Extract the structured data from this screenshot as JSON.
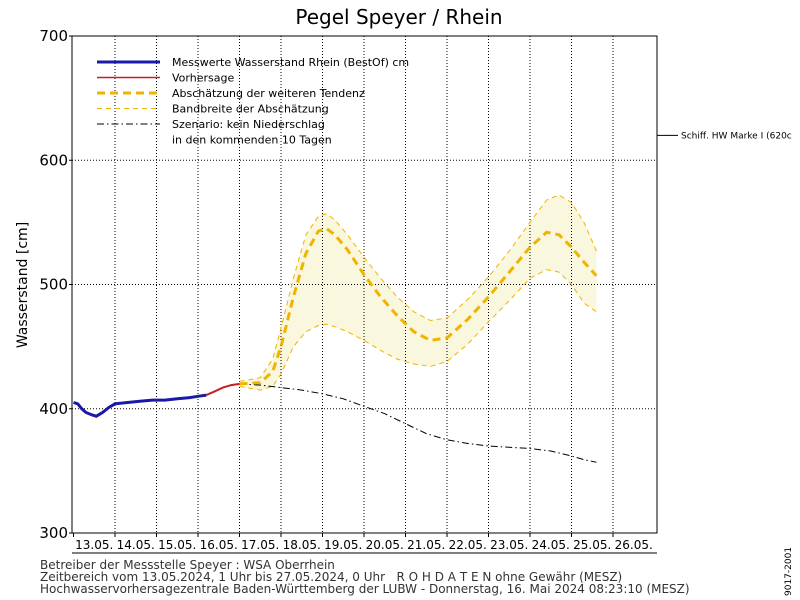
{
  "chart_data": {
    "type": "line",
    "title": "Pegel Speyer / Rhein",
    "ylabel": "Wasserstand [cm]",
    "ylim": [
      300,
      700
    ],
    "yticks": [
      300,
      400,
      500,
      600,
      700
    ],
    "x_categories": [
      "13.05.",
      "14.05.",
      "15.05.",
      "16.05.",
      "17.05.",
      "18.05.",
      "19.05.",
      "20.05.",
      "21.05.",
      "22.05.",
      "23.05.",
      "24.05.",
      "25.05.",
      "26.05."
    ],
    "grid": true,
    "legend_position": "top-left",
    "legend": [
      {
        "label": "Messwerte Wasserstand Rhein (BestOf)  cm",
        "style": "thick-solid",
        "color": "#1a1aa6"
      },
      {
        "label": "Vorhersage",
        "style": "solid",
        "color": "#c81e1e"
      },
      {
        "label": "Abschätzung der weiteren Tendenz",
        "style": "thick-dashed",
        "color": "#f0b400"
      },
      {
        "label": "Bandbreite der Abschätzung",
        "style": "thin-dashed",
        "color": "#f0b400"
      },
      {
        "label": "Szenario: kein Niederschlag",
        "style": "dash-dot",
        "color": "#000000"
      },
      {
        "label": "in den kommenden 10 Tagen",
        "style": "none",
        "color": "#000000"
      }
    ],
    "reference_line": {
      "label": "Schiff. HW Marke I (620c",
      "value": 620
    },
    "series": [
      {
        "name": "Messwerte Wasserstand Rhein (BestOf)",
        "color": "#1a1aa6",
        "points": [
          [
            0.0,
            405
          ],
          [
            0.1,
            404
          ],
          [
            0.2,
            400
          ],
          [
            0.3,
            397
          ],
          [
            0.45,
            395
          ],
          [
            0.55,
            394
          ],
          [
            0.7,
            397
          ],
          [
            0.85,
            401
          ],
          [
            1.0,
            404
          ],
          [
            1.3,
            405
          ],
          [
            1.6,
            406
          ],
          [
            1.9,
            407
          ],
          [
            2.2,
            407
          ],
          [
            2.5,
            408
          ],
          [
            2.8,
            409
          ],
          [
            3.0,
            410
          ],
          [
            3.2,
            411
          ]
        ]
      },
      {
        "name": "Vorhersage",
        "color": "#c81e1e",
        "points": [
          [
            3.2,
            411
          ],
          [
            3.4,
            414
          ],
          [
            3.6,
            417
          ],
          [
            3.8,
            419
          ],
          [
            4.0,
            420
          ]
        ]
      },
      {
        "name": "Abschätzung der weiteren Tendenz",
        "color": "#f0b400",
        "points": [
          [
            4.0,
            420
          ],
          [
            4.5,
            421
          ],
          [
            4.8,
            430
          ],
          [
            5.0,
            450
          ],
          [
            5.3,
            490
          ],
          [
            5.6,
            525
          ],
          [
            5.9,
            543
          ],
          [
            6.1,
            545
          ],
          [
            6.3,
            540
          ],
          [
            6.6,
            528
          ],
          [
            7.0,
            508
          ],
          [
            7.4,
            490
          ],
          [
            7.8,
            475
          ],
          [
            8.2,
            462
          ],
          [
            8.6,
            455
          ],
          [
            9.0,
            457
          ],
          [
            9.5,
            472
          ],
          [
            10.0,
            490
          ],
          [
            10.5,
            510
          ],
          [
            11.0,
            530
          ],
          [
            11.4,
            542
          ],
          [
            11.7,
            540
          ],
          [
            12.0,
            530
          ],
          [
            12.3,
            518
          ],
          [
            12.6,
            507
          ]
        ]
      },
      {
        "name": "Bandbreite der Abschätzung (oben)",
        "color": "#f0b400",
        "points": [
          [
            4.0,
            422
          ],
          [
            4.5,
            425
          ],
          [
            4.8,
            440
          ],
          [
            5.0,
            465
          ],
          [
            5.3,
            505
          ],
          [
            5.6,
            540
          ],
          [
            5.9,
            555
          ],
          [
            6.1,
            557
          ],
          [
            6.3,
            552
          ],
          [
            6.6,
            540
          ],
          [
            7.0,
            522
          ],
          [
            7.4,
            505
          ],
          [
            7.8,
            490
          ],
          [
            8.2,
            478
          ],
          [
            8.6,
            471
          ],
          [
            9.0,
            473
          ],
          [
            9.5,
            488
          ],
          [
            10.0,
            506
          ],
          [
            10.5,
            527
          ],
          [
            11.0,
            550
          ],
          [
            11.4,
            568
          ],
          [
            11.7,
            572
          ],
          [
            12.0,
            566
          ],
          [
            12.3,
            550
          ],
          [
            12.6,
            527
          ]
        ]
      },
      {
        "name": "Bandbreite der Abschätzung (unten)",
        "color": "#f0b400",
        "points": [
          [
            4.0,
            418
          ],
          [
            4.5,
            415
          ],
          [
            4.8,
            418
          ],
          [
            5.0,
            428
          ],
          [
            5.3,
            450
          ],
          [
            5.6,
            462
          ],
          [
            5.9,
            467
          ],
          [
            6.1,
            468
          ],
          [
            6.3,
            466
          ],
          [
            6.6,
            462
          ],
          [
            7.0,
            455
          ],
          [
            7.4,
            447
          ],
          [
            7.8,
            440
          ],
          [
            8.2,
            436
          ],
          [
            8.6,
            434
          ],
          [
            9.0,
            438
          ],
          [
            9.5,
            452
          ],
          [
            10.0,
            470
          ],
          [
            10.5,
            487
          ],
          [
            11.0,
            505
          ],
          [
            11.4,
            512
          ],
          [
            11.7,
            510
          ],
          [
            12.0,
            500
          ],
          [
            12.3,
            485
          ],
          [
            12.6,
            478
          ]
        ]
      },
      {
        "name": "Szenario: kein Niederschlag",
        "color": "#000000",
        "points": [
          [
            4.0,
            420
          ],
          [
            4.5,
            419
          ],
          [
            5.0,
            417
          ],
          [
            5.5,
            415
          ],
          [
            6.0,
            412
          ],
          [
            6.5,
            408
          ],
          [
            7.0,
            402
          ],
          [
            7.5,
            396
          ],
          [
            8.0,
            388
          ],
          [
            8.5,
            380
          ],
          [
            9.0,
            375
          ],
          [
            9.5,
            372
          ],
          [
            10.0,
            370
          ],
          [
            10.5,
            369
          ],
          [
            11.0,
            368
          ],
          [
            11.5,
            366
          ],
          [
            12.0,
            362
          ],
          [
            12.3,
            359
          ],
          [
            12.6,
            357
          ]
        ]
      }
    ]
  },
  "footer": {
    "line1": "Betreiber der Messstelle Speyer : WSA Oberrhein",
    "line2": "Zeitbereich vom 13.05.2024, 1 Uhr bis 27.05.2024, 0 Uhr   R O H D A T E N ohne Gewähr (MESZ)",
    "line3": "Hochwasservorhersagezentrale Baden-Württemberg der LUBW - Donnerstag, 16. Mai 2024 08:23:10 (MESZ)"
  },
  "code": "9017-2001"
}
